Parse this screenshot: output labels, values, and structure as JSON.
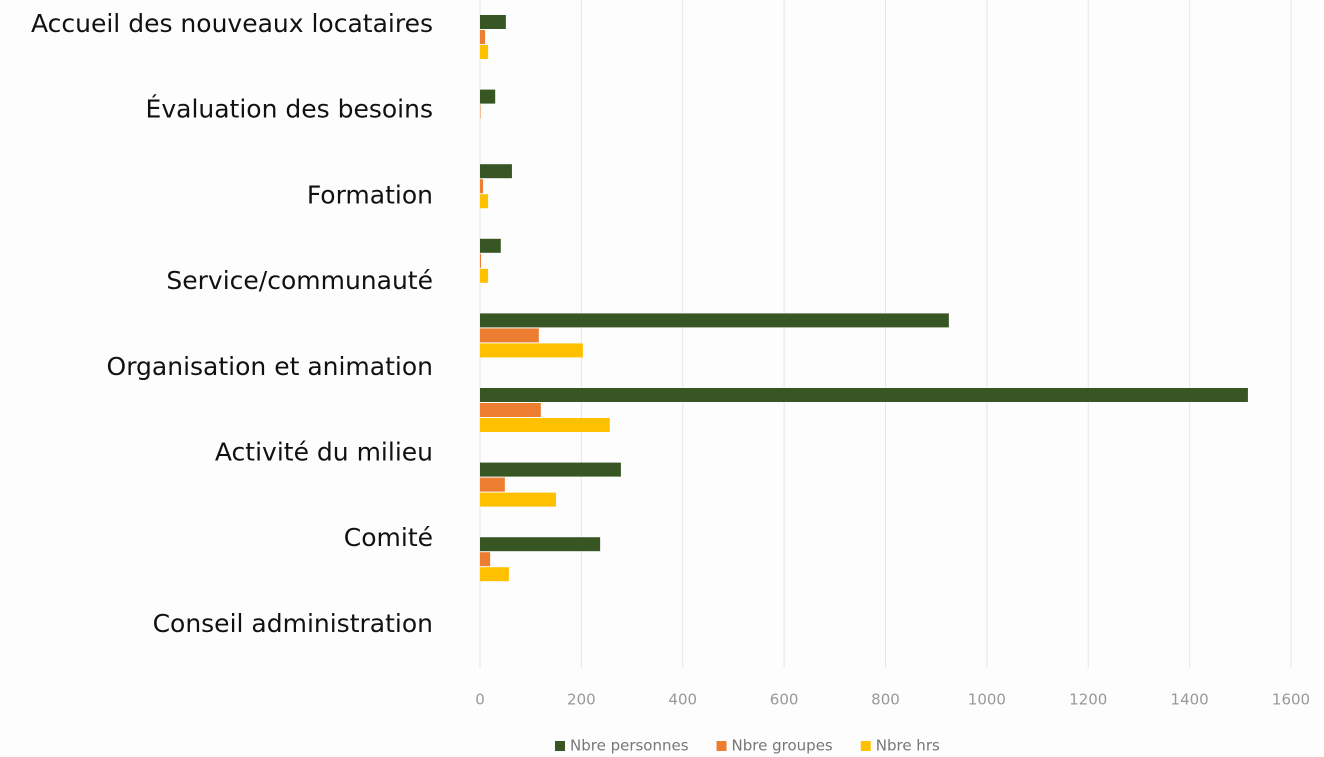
{
  "chart_data": {
    "type": "bar",
    "orientation": "horizontal",
    "categories": [
      "Accueil des nouveaux locataires",
      "Évaluation des besoins",
      "Formation",
      "Service/communauté",
      "Organisation et animation",
      "Activité du milieu",
      "Comité",
      "Conseil administration"
    ],
    "series": [
      {
        "name": "Nbre personnes",
        "color": "#375623",
        "values": [
          51,
          30,
          63,
          41,
          925,
          1515,
          278,
          237
        ]
      },
      {
        "name": "Nbre groupes",
        "color": "#ed7d31",
        "values": [
          10,
          1,
          6,
          2,
          116,
          120,
          49,
          20
        ]
      },
      {
        "name": "Nbre hrs",
        "color": "#ffc000",
        "values": [
          16,
          0,
          16,
          16,
          203,
          256,
          150,
          57
        ]
      }
    ],
    "xlim": [
      0,
      1600
    ],
    "xticks": [
      0,
      200,
      400,
      600,
      800,
      1000,
      1200,
      1400,
      1600
    ],
    "grid": true,
    "legend": "bottom"
  }
}
